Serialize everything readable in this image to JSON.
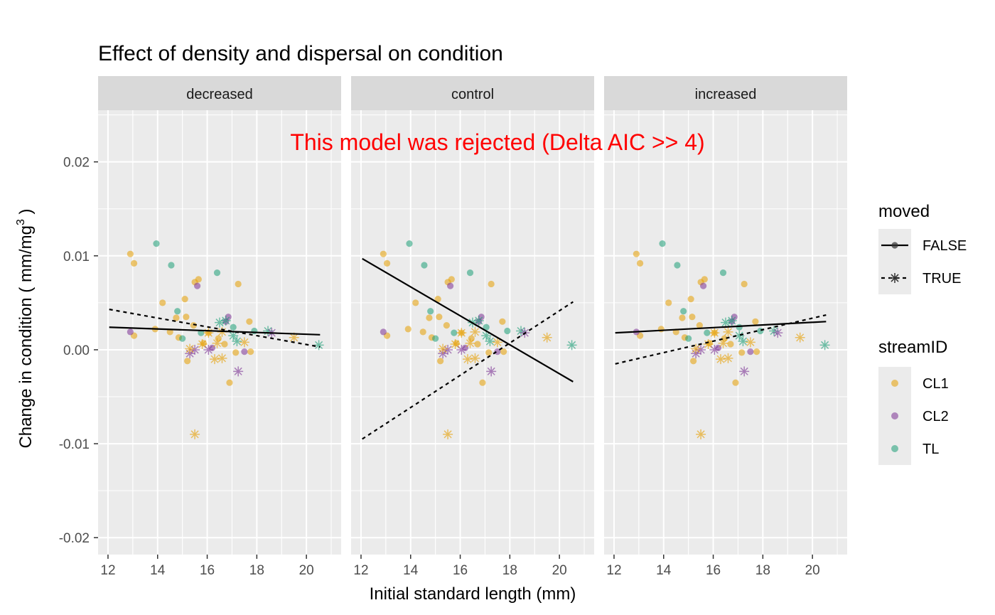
{
  "chart_data": {
    "type": "scatter",
    "title": "Effect of density and dispersal on condition",
    "xlabel": "Initial standard length (mm)",
    "ylabel": "Change in condition ( mm/mg",
    "ylabel_superscript": "3",
    "ylabel_close": " )",
    "annotation": "This  model  was  rejected (Delta AIC >> 4)",
    "annotation_color": "#ff0000",
    "xlim": [
      11.6,
      21.4
    ],
    "ylim": [
      -0.0218,
      0.0255
    ],
    "x_ticks": [
      12,
      14,
      16,
      18,
      20
    ],
    "x_tick_labels": [
      "12",
      "14",
      "16",
      "18",
      "20"
    ],
    "y_ticks": [
      -0.02,
      -0.01,
      0.0,
      0.01,
      0.02
    ],
    "y_tick_labels": [
      "-0.02",
      "-0.01",
      "0.00",
      "0.01",
      "0.02"
    ],
    "grid": true,
    "panel_background": "#ebebeb",
    "strip_background": "#d9d9d9",
    "facets": [
      "decreased",
      "control",
      "increased"
    ],
    "legend_position": "right",
    "legend_moved": {
      "title": "moved",
      "entries": [
        {
          "label": "FALSE",
          "shape": "dot",
          "linetype": "solid"
        },
        {
          "label": "TRUE",
          "shape": "asterisk",
          "linetype": "dashed"
        }
      ]
    },
    "legend_stream": {
      "title": "streamID",
      "entries": [
        {
          "label": "CL1",
          "color": "#E69F00"
        },
        {
          "label": "CL2",
          "color": "#7B3294"
        },
        {
          "label": "TL",
          "color": "#1B9E77"
        }
      ]
    },
    "points": [
      {
        "x": 12.9,
        "y": 0.0102,
        "stream": "CL1",
        "moved": "FALSE"
      },
      {
        "x": 13.05,
        "y": 0.0092,
        "stream": "CL1",
        "moved": "FALSE"
      },
      {
        "x": 13.05,
        "y": 0.0015,
        "stream": "CL1",
        "moved": "FALSE"
      },
      {
        "x": 12.9,
        "y": 0.0019,
        "stream": "CL2",
        "moved": "FALSE"
      },
      {
        "x": 13.9,
        "y": 0.0022,
        "stream": "CL1",
        "moved": "FALSE"
      },
      {
        "x": 13.95,
        "y": 0.0113,
        "stream": "TL",
        "moved": "FALSE"
      },
      {
        "x": 14.2,
        "y": 0.005,
        "stream": "CL1",
        "moved": "FALSE"
      },
      {
        "x": 14.55,
        "y": 0.009,
        "stream": "TL",
        "moved": "FALSE"
      },
      {
        "x": 14.5,
        "y": 0.0019,
        "stream": "CL1",
        "moved": "FALSE"
      },
      {
        "x": 14.8,
        "y": 0.0041,
        "stream": "TL",
        "moved": "FALSE"
      },
      {
        "x": 14.75,
        "y": 0.0034,
        "stream": "CL1",
        "moved": "FALSE"
      },
      {
        "x": 14.85,
        "y": 0.0013,
        "stream": "CL1",
        "moved": "FALSE"
      },
      {
        "x": 15.0,
        "y": 0.0012,
        "stream": "TL",
        "moved": "FALSE"
      },
      {
        "x": 15.1,
        "y": 0.0054,
        "stream": "CL1",
        "moved": "FALSE"
      },
      {
        "x": 15.15,
        "y": 0.0035,
        "stream": "CL1",
        "moved": "FALSE"
      },
      {
        "x": 15.2,
        "y": -0.0012,
        "stream": "CL1",
        "moved": "FALSE"
      },
      {
        "x": 15.45,
        "y": 0.0026,
        "stream": "CL1",
        "moved": "FALSE"
      },
      {
        "x": 15.5,
        "y": 0.0072,
        "stream": "CL1",
        "moved": "FALSE"
      },
      {
        "x": 15.6,
        "y": 0.0068,
        "stream": "CL2",
        "moved": "FALSE"
      },
      {
        "x": 15.65,
        "y": 0.0075,
        "stream": "CL1",
        "moved": "FALSE"
      },
      {
        "x": 15.75,
        "y": 0.0018,
        "stream": "TL",
        "moved": "FALSE"
      },
      {
        "x": 15.85,
        "y": 0.0007,
        "stream": "CL1",
        "moved": "FALSE"
      },
      {
        "x": 16.05,
        "y": 0.0018,
        "stream": "CL1",
        "moved": "FALSE"
      },
      {
        "x": 16.2,
        "y": 0.0002,
        "stream": "CL2",
        "moved": "FALSE"
      },
      {
        "x": 16.4,
        "y": 0.0082,
        "stream": "TL",
        "moved": "FALSE"
      },
      {
        "x": 16.45,
        "y": 0.0012,
        "stream": "CL1",
        "moved": "FALSE"
      },
      {
        "x": 16.7,
        "y": 0.0006,
        "stream": "CL1",
        "moved": "FALSE"
      },
      {
        "x": 16.75,
        "y": 0.003,
        "stream": "CL2",
        "moved": "FALSE"
      },
      {
        "x": 16.85,
        "y": 0.0035,
        "stream": "CL2",
        "moved": "FALSE"
      },
      {
        "x": 16.9,
        "y": -0.0035,
        "stream": "CL1",
        "moved": "FALSE"
      },
      {
        "x": 17.05,
        "y": 0.0024,
        "stream": "TL",
        "moved": "FALSE"
      },
      {
        "x": 17.15,
        "y": -0.0003,
        "stream": "CL1",
        "moved": "FALSE"
      },
      {
        "x": 17.25,
        "y": 0.007,
        "stream": "CL1",
        "moved": "FALSE"
      },
      {
        "x": 17.5,
        "y": -0.0002,
        "stream": "CL2",
        "moved": "FALSE"
      },
      {
        "x": 17.7,
        "y": 0.003,
        "stream": "CL1",
        "moved": "FALSE"
      },
      {
        "x": 17.75,
        "y": -0.0002,
        "stream": "CL1",
        "moved": "FALSE"
      },
      {
        "x": 17.9,
        "y": 0.002,
        "stream": "TL",
        "moved": "FALSE"
      },
      {
        "x": 15.5,
        "y": -0.009,
        "stream": "CL1",
        "moved": "TRUE"
      },
      {
        "x": 15.3,
        "y": -0.0004,
        "stream": "CL2",
        "moved": "TRUE"
      },
      {
        "x": 15.5,
        "y": 0.0,
        "stream": "CL2",
        "moved": "TRUE"
      },
      {
        "x": 15.3,
        "y": 0.0001,
        "stream": "CL1",
        "moved": "TRUE"
      },
      {
        "x": 15.8,
        "y": 0.0006,
        "stream": "CL1",
        "moved": "TRUE"
      },
      {
        "x": 16.05,
        "y": 0.0018,
        "stream": "CL1",
        "moved": "TRUE"
      },
      {
        "x": 16.05,
        "y": 0.0,
        "stream": "CL2",
        "moved": "TRUE"
      },
      {
        "x": 16.3,
        "y": -0.001,
        "stream": "CL1",
        "moved": "TRUE"
      },
      {
        "x": 16.4,
        "y": 0.0007,
        "stream": "CL1",
        "moved": "TRUE"
      },
      {
        "x": 16.6,
        "y": -0.0009,
        "stream": "CL1",
        "moved": "TRUE"
      },
      {
        "x": 16.6,
        "y": 0.0019,
        "stream": "CL1",
        "moved": "TRUE"
      },
      {
        "x": 16.5,
        "y": 0.0029,
        "stream": "TL",
        "moved": "TRUE"
      },
      {
        "x": 16.75,
        "y": 0.0031,
        "stream": "TL",
        "moved": "TRUE"
      },
      {
        "x": 17.05,
        "y": 0.0015,
        "stream": "TL",
        "moved": "TRUE"
      },
      {
        "x": 17.2,
        "y": 0.0009,
        "stream": "TL",
        "moved": "TRUE"
      },
      {
        "x": 17.25,
        "y": -0.0023,
        "stream": "CL2",
        "moved": "TRUE"
      },
      {
        "x": 17.5,
        "y": 0.0008,
        "stream": "CL1",
        "moved": "TRUE"
      },
      {
        "x": 18.45,
        "y": 0.002,
        "stream": "TL",
        "moved": "TRUE"
      },
      {
        "x": 18.6,
        "y": 0.0018,
        "stream": "CL2",
        "moved": "TRUE"
      },
      {
        "x": 19.5,
        "y": 0.0013,
        "stream": "CL1",
        "moved": "TRUE"
      },
      {
        "x": 20.5,
        "y": 0.0005,
        "stream": "TL",
        "moved": "TRUE"
      }
    ],
    "fit_lines": [
      {
        "facet": "decreased",
        "moved": "FALSE",
        "x": [
          12.05,
          20.55
        ],
        "y": [
          0.0024,
          0.0016
        ]
      },
      {
        "facet": "decreased",
        "moved": "TRUE",
        "x": [
          12.05,
          20.55
        ],
        "y": [
          0.0043,
          0.0003
        ]
      },
      {
        "facet": "control",
        "moved": "FALSE",
        "x": [
          12.05,
          20.55
        ],
        "y": [
          0.0097,
          -0.0034
        ]
      },
      {
        "facet": "control",
        "moved": "TRUE",
        "x": [
          12.05,
          20.55
        ],
        "y": [
          -0.0095,
          0.0051
        ]
      },
      {
        "facet": "increased",
        "moved": "FALSE",
        "x": [
          12.05,
          20.55
        ],
        "y": [
          0.0018,
          0.003
        ]
      },
      {
        "facet": "increased",
        "moved": "TRUE",
        "x": [
          12.05,
          20.55
        ],
        "y": [
          -0.0015,
          0.0037
        ]
      }
    ]
  }
}
